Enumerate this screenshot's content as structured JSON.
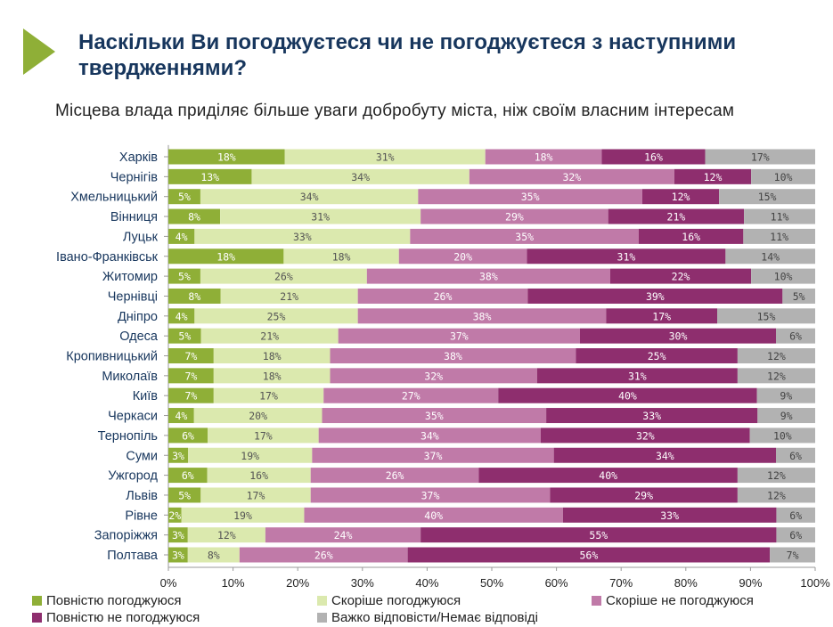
{
  "header": {
    "title": "Наскільки Ви погоджуєтеся чи не погоджуєтеся з наступними\nтвердженнями?",
    "subtitle": "Місцева влада приділяє більше уваги добробуту міста, ніж своїм власним інтересам"
  },
  "colors": {
    "accent": "#8faf37",
    "title": "#17365d",
    "series": [
      "#8faf37",
      "#dbe9ae",
      "#c07aa8",
      "#8e2e6e",
      "#b2b2b2"
    ]
  },
  "chart_data": {
    "type": "bar",
    "orientation": "horizontal",
    "stacked": true,
    "categories": [
      "Харків",
      "Чернігів",
      "Хмельницький",
      "Вінниця",
      "Луцьк",
      "Івано-Франківськ",
      "Житомир",
      "Чернівці",
      "Дніпро",
      "Одеса",
      "Кропивницький",
      "Миколаїв",
      "Київ",
      "Черкаси",
      "Тернопіль",
      "Суми",
      "Ужгород",
      "Львів",
      "Рівне",
      "Запоріжжя",
      "Полтава"
    ],
    "series": [
      {
        "name": "Повністю погоджуюся",
        "values": [
          18,
          13,
          5,
          8,
          4,
          18,
          5,
          8,
          4,
          5,
          7,
          7,
          7,
          4,
          6,
          3,
          6,
          5,
          2,
          3,
          3
        ]
      },
      {
        "name": "Скоріше погоджуюся",
        "values": [
          31,
          34,
          34,
          31,
          33,
          18,
          26,
          21,
          25,
          21,
          18,
          18,
          17,
          20,
          17,
          19,
          16,
          17,
          19,
          12,
          8
        ]
      },
      {
        "name": "Скоріше не погоджуюся",
        "values": [
          18,
          32,
          35,
          29,
          35,
          20,
          38,
          26,
          38,
          37,
          38,
          32,
          27,
          35,
          34,
          37,
          26,
          37,
          40,
          24,
          26
        ]
      },
      {
        "name": "Повністю не погоджуюся",
        "values": [
          16,
          12,
          12,
          21,
          16,
          31,
          22,
          39,
          17,
          30,
          25,
          31,
          40,
          33,
          32,
          34,
          40,
          29,
          33,
          55,
          56
        ]
      },
      {
        "name": "Важко відповісти/Немає відповіді",
        "values": [
          17,
          10,
          15,
          11,
          11,
          14,
          10,
          5,
          15,
          6,
          12,
          12,
          9,
          9,
          10,
          6,
          12,
          12,
          6,
          6,
          7
        ]
      }
    ],
    "xlim": [
      0,
      100
    ],
    "xticks": [
      "0%",
      "10%",
      "20%",
      "30%",
      "40%",
      "50%",
      "60%",
      "70%",
      "80%",
      "90%",
      "100%"
    ],
    "value_suffix": "%",
    "legend_position": "bottom"
  }
}
